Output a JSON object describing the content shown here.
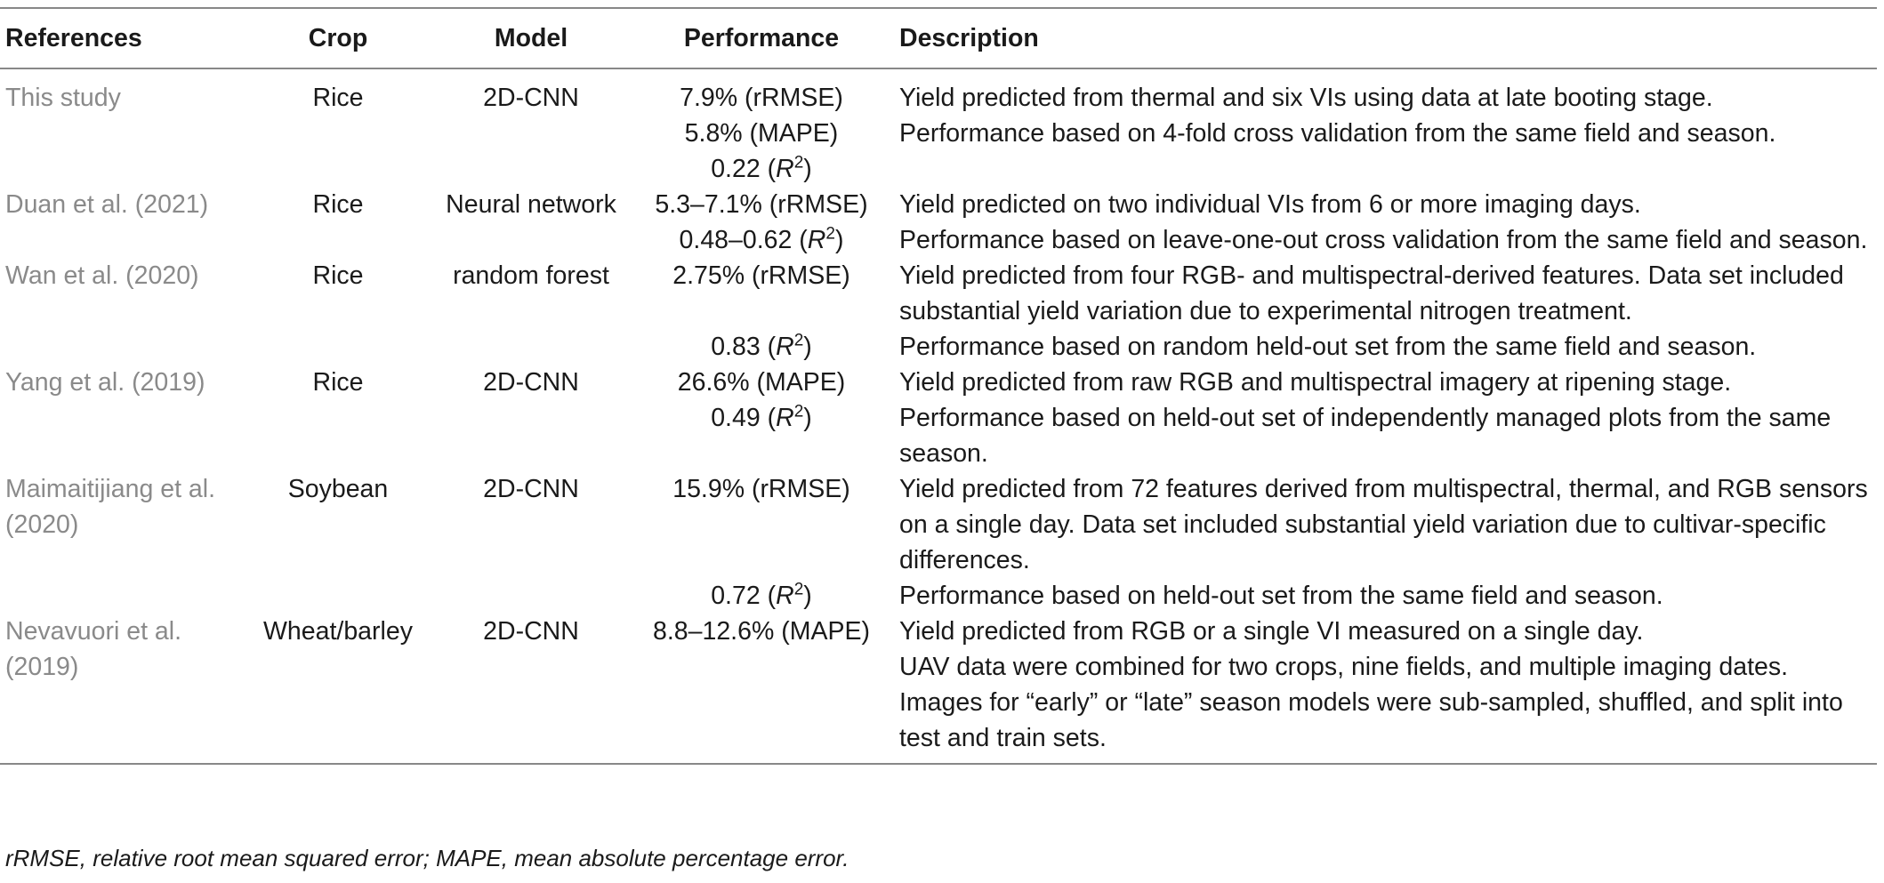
{
  "headers": {
    "references": "References",
    "crop": "Crop",
    "model": "Model",
    "performance": "Performance",
    "description": "Description"
  },
  "rows": [
    {
      "ref": "This study",
      "crop": "Rice",
      "model": "2D-CNN",
      "perf": "7.9% (rRMSE)",
      "desc": "Yield predicted from thermal and six VIs using data at late booting stage."
    },
    {
      "ref": "",
      "crop": "",
      "model": "",
      "perf": "5.8% (MAPE)",
      "desc": "Performance based on 4-fold cross validation from the same field and season."
    },
    {
      "ref": "",
      "crop": "",
      "model": "",
      "perf_num": "0.22",
      "perf_r": "R",
      "perf_sup": "2",
      "desc": ""
    },
    {
      "ref": "Duan et al. (2021)",
      "crop": "Rice",
      "model": "Neural network",
      "perf": "5.3–7.1% (rRMSE)",
      "desc": "Yield predicted on two individual VIs from 6 or more imaging days."
    },
    {
      "ref": "",
      "crop": "",
      "model": "",
      "perf_num": "0.48–0.62",
      "perf_r": "R",
      "perf_sup": "2",
      "desc": "Performance based on leave-one-out cross validation from the same field and season."
    },
    {
      "ref": "Wan et al. (2020)",
      "crop": "Rice",
      "model": "random forest",
      "perf": "2.75% (rRMSE)",
      "desc": "Yield predicted from four RGB- and multispectral-derived features. Data set included substantial yield variation due to experimental nitrogen treatment."
    },
    {
      "ref": "",
      "crop": "",
      "model": "",
      "perf_num": "0.83",
      "perf_r": "R",
      "perf_sup": "2",
      "desc": "Performance based on random held-out set from the same field and season."
    },
    {
      "ref": "Yang et al. (2019)",
      "crop": "Rice",
      "model": "2D-CNN",
      "perf": "26.6% (MAPE)",
      "desc": "Yield predicted from raw RGB and multispectral imagery at ripening stage."
    },
    {
      "ref": "",
      "crop": "",
      "model": "",
      "perf_num": "0.49",
      "perf_r": "R",
      "perf_sup": "2",
      "desc": "Performance based on held-out set of independently managed plots from the same season."
    },
    {
      "ref": "Maimaitijiang et al. (2020)",
      "crop": "Soybean",
      "model": "2D-CNN",
      "perf": "15.9% (rRMSE)",
      "desc": "Yield predicted from 72 features derived from multispectral, thermal, and RGB sensors on a single day. Data set included substantial yield variation due to cultivar-specific differences."
    },
    {
      "ref": "",
      "crop": "",
      "model": "",
      "perf_num": "0.72",
      "perf_r": "R",
      "perf_sup": "2",
      "desc": "Performance based on held-out set from the same field and season."
    },
    {
      "ref": "Nevavuori et al. (2019)",
      "crop": "Wheat/barley",
      "model": "2D-CNN",
      "perf": "8.8–12.6% (MAPE)",
      "desc": "Yield predicted from RGB or a single VI measured on a single day.",
      "desc2": "UAV data were combined for two crops, nine fields, and multiple imaging dates. Images for “early” or “late” season models were sub-sampled, shuffled, and split into test and train sets."
    }
  ],
  "footnote": "rRMSE, relative root mean squared error; MAPE, mean absolute percentage error."
}
